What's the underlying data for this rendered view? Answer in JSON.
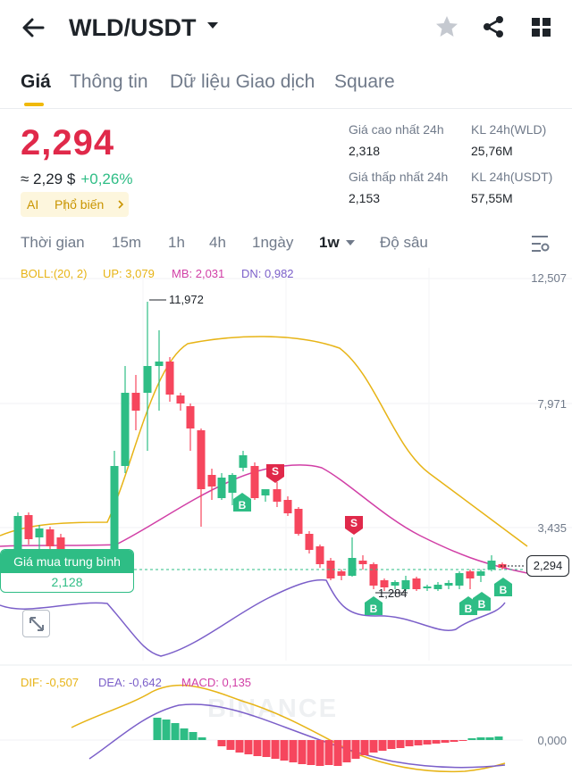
{
  "header": {
    "pair": "WLD/USDT",
    "icons": [
      "back-arrow-icon",
      "caret-down-icon",
      "star-icon",
      "share-icon",
      "grid-icon"
    ]
  },
  "tabs": [
    "Giá",
    "Thông tin",
    "Dữ liệu Giao dịch",
    "Square"
  ],
  "price": {
    "last": "2,294",
    "approx_usd": "≈ 2,29 $",
    "change": "+0,26%",
    "tag_ai": "AI",
    "tag_label": "Phổ biến"
  },
  "stats": {
    "high_label": "Giá cao nhất 24h",
    "high_value": "2,318",
    "low_label": "Giá thấp nhất 24h",
    "low_value": "2,153",
    "vol_wld_label": "KL 24h(WLD)",
    "vol_wld_value": "25,76M",
    "vol_usdt_label": "KL 24h(USDT)",
    "vol_usdt_value": "57,55M"
  },
  "timeframes": [
    "Thời gian",
    "15m",
    "1h",
    "4h",
    "1ngày",
    "1w",
    "Độ sâu"
  ],
  "boll_legend": {
    "boll": "BOLL:(20, 2)",
    "up": "UP: 3,079",
    "mb": "MB: 2,031",
    "dn": "DN: 0,982"
  },
  "axis": [
    "12,507",
    "7,971",
    "3,435",
    "0,000"
  ],
  "current_price_label": "2,294",
  "avg_buy": {
    "title": "Giá mua trung bình",
    "value": "2,128"
  },
  "max_label": "11,972",
  "min_label": "1,284",
  "markers": {
    "buy": "B",
    "sell": "S"
  },
  "watermark": "BINANCE",
  "macd_legend": {
    "dif": "DIF: -0,507",
    "dea": "DEA: -0,642",
    "macd": "MACD: 0,135"
  },
  "colors": {
    "up": "#2ebd85",
    "down": "#f6465d",
    "price_red": "#e0294a",
    "accent": "#f0b90b",
    "boll_up": "#e7b416",
    "boll_mb": "#d13fa6",
    "boll_dn": "#7b5fc9"
  }
}
